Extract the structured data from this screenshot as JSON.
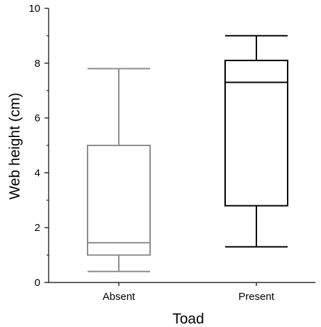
{
  "chart_data": {
    "type": "box",
    "xlabel": "Toad",
    "ylabel": "Web height (cm)",
    "ylim": [
      0,
      10
    ],
    "yticks": [
      "0",
      "2",
      "4",
      "6",
      "8",
      "10"
    ],
    "yticks_values": [
      0,
      2,
      4,
      6,
      8,
      10
    ],
    "categories": [
      "Absent",
      "Present"
    ],
    "boxes": [
      {
        "category": "Absent",
        "whisker_low": 0.4,
        "q1": 1.0,
        "median": 1.45,
        "q3": 5.0,
        "whisker_high": 7.8,
        "color": "#8c8c8c"
      },
      {
        "category": "Present",
        "whisker_low": 1.3,
        "q1": 2.8,
        "median": 7.3,
        "q3": 8.1,
        "whisker_high": 9.0,
        "color": "#000000"
      }
    ],
    "grid": false,
    "minor_ticks": true
  }
}
